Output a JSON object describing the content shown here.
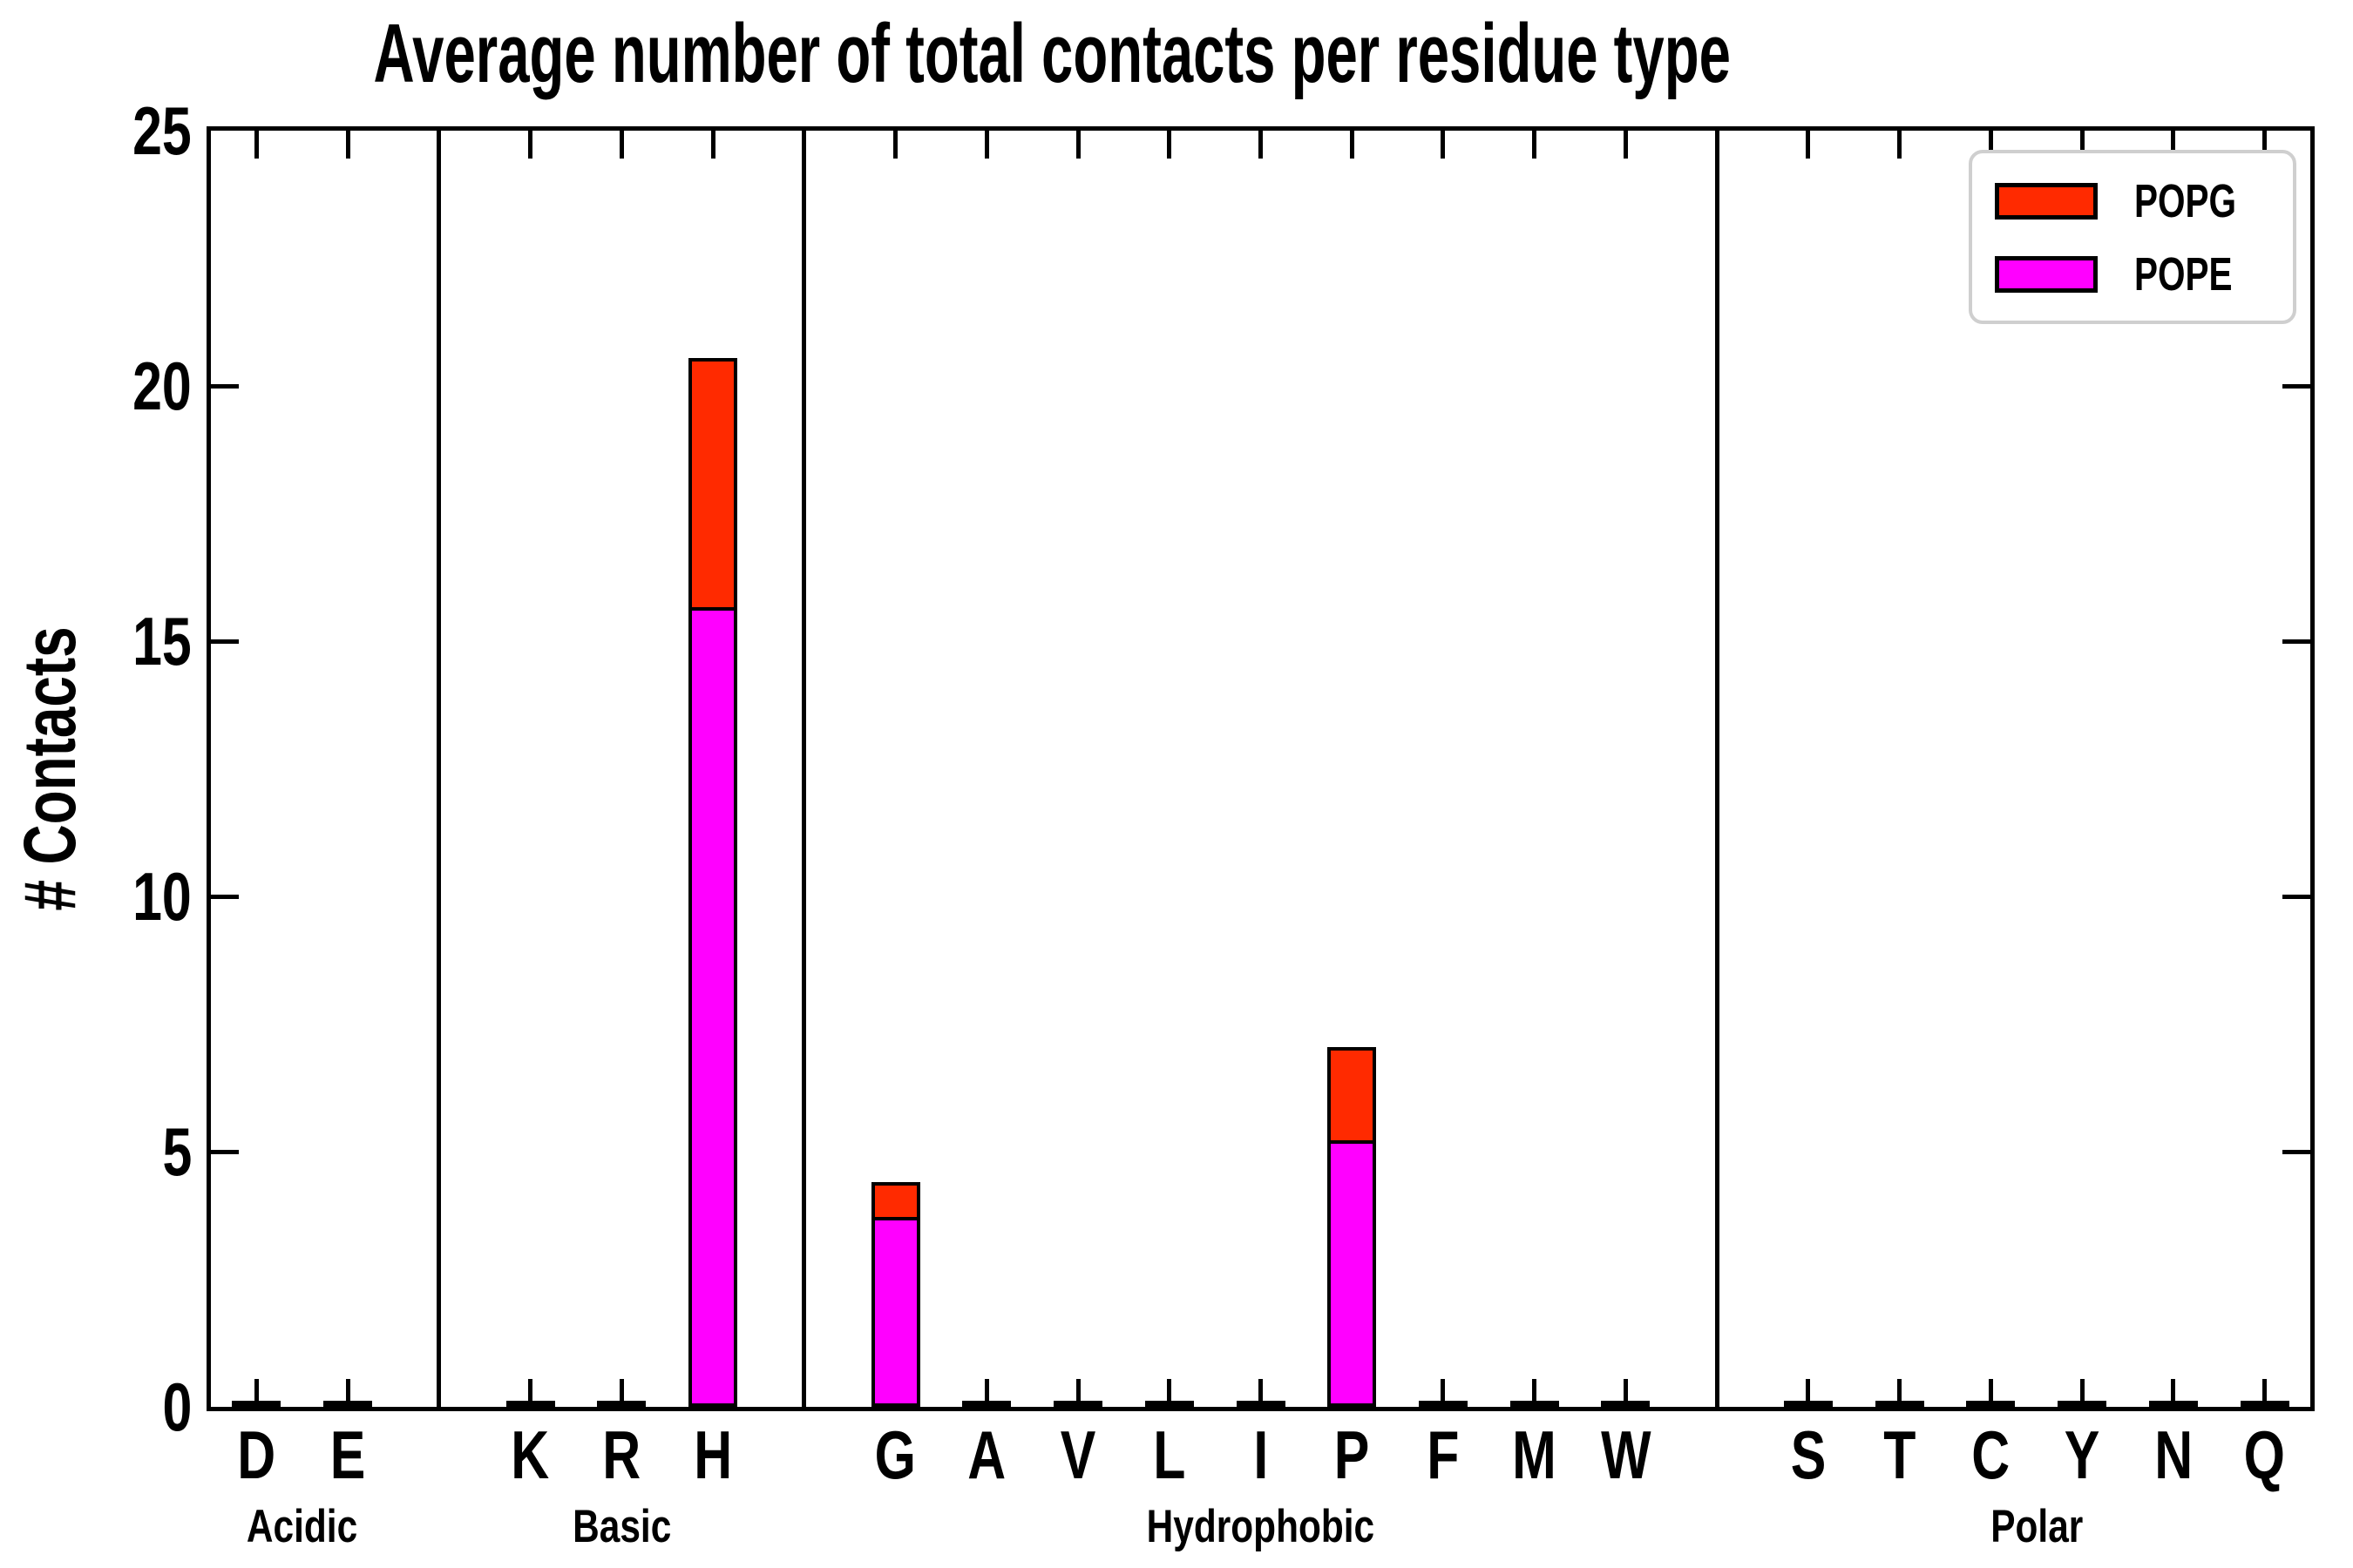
{
  "chart_data": {
    "type": "bar",
    "stacked": true,
    "title": "Average number of total contacts per residue type",
    "ylabel": "# Contacts",
    "xlabel": "",
    "ylim": [
      0,
      25
    ],
    "yticks": [
      0,
      5,
      10,
      15,
      20,
      25
    ],
    "grid": false,
    "legend_position": "upper right",
    "legend": [
      {
        "label": "POPG",
        "color": "#ff2a00"
      },
      {
        "label": "POPE",
        "color": "#ff00ff"
      }
    ],
    "categories": [
      "D",
      "E",
      "K",
      "R",
      "H",
      "G",
      "A",
      "V",
      "L",
      "I",
      "P",
      "F",
      "M",
      "W",
      "S",
      "T",
      "C",
      "Y",
      "N",
      "Q"
    ],
    "group_labels": [
      "Acidic",
      "Basic",
      "Hydrophobic",
      "Polar"
    ],
    "group_sizes": [
      2,
      3,
      9,
      6
    ],
    "series": [
      {
        "name": "POPE",
        "color": "#ff00ff",
        "values": [
          0.05,
          0.05,
          0.05,
          0.05,
          15.6,
          3.65,
          0.05,
          0.05,
          0.05,
          0.05,
          5.15,
          0.05,
          0.05,
          0.05,
          0.05,
          0.05,
          0.05,
          0.05,
          0.05,
          0.05
        ]
      },
      {
        "name": "POPG",
        "color": "#ff2a00",
        "values": [
          0.05,
          0.05,
          0.05,
          0.05,
          4.95,
          0.75,
          0.05,
          0.05,
          0.05,
          0.05,
          1.9,
          0.05,
          0.05,
          0.05,
          0.05,
          0.05,
          0.05,
          0.05,
          0.05,
          0.05
        ]
      }
    ]
  }
}
